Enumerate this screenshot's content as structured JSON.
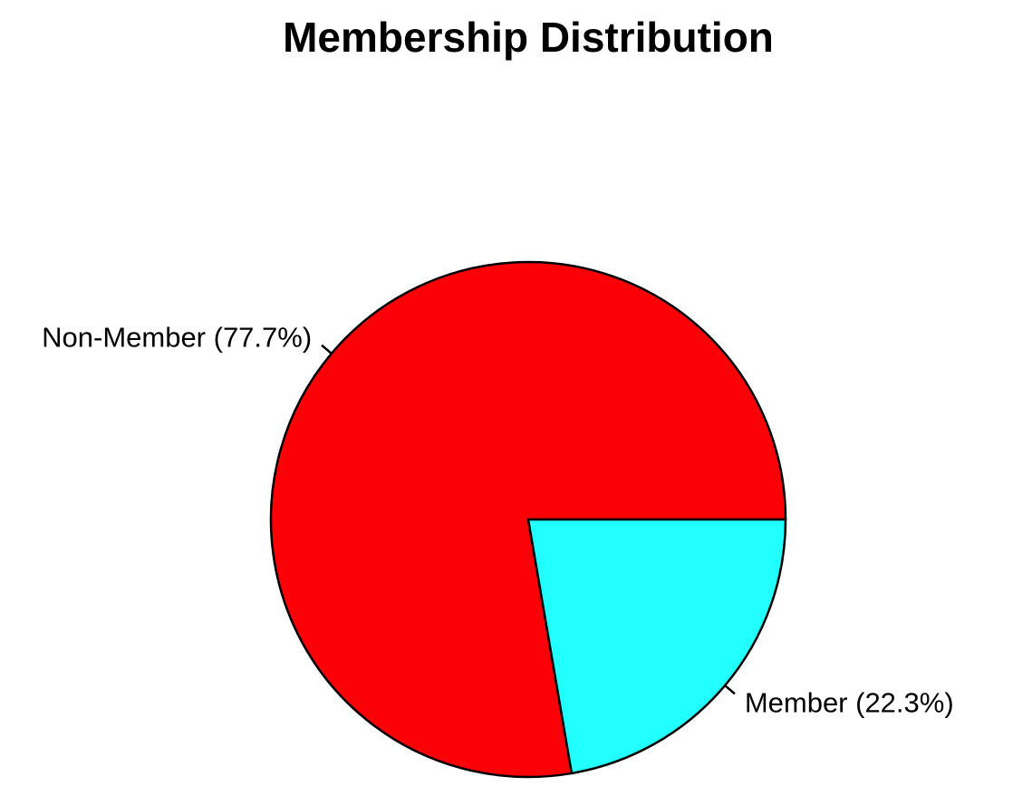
{
  "chart_data": {
    "type": "pie",
    "title": "Membership Distribution",
    "start_angle_degrees": 0,
    "direction": "counterclockwise",
    "slices": [
      {
        "label": "Non-Member (77.7%)",
        "category": "Non-Member",
        "percent": 77.7,
        "color": "#fb0007"
      },
      {
        "label": "Member (22.3%)",
        "category": "Member",
        "percent": 22.3,
        "color": "#22ffff"
      }
    ]
  }
}
